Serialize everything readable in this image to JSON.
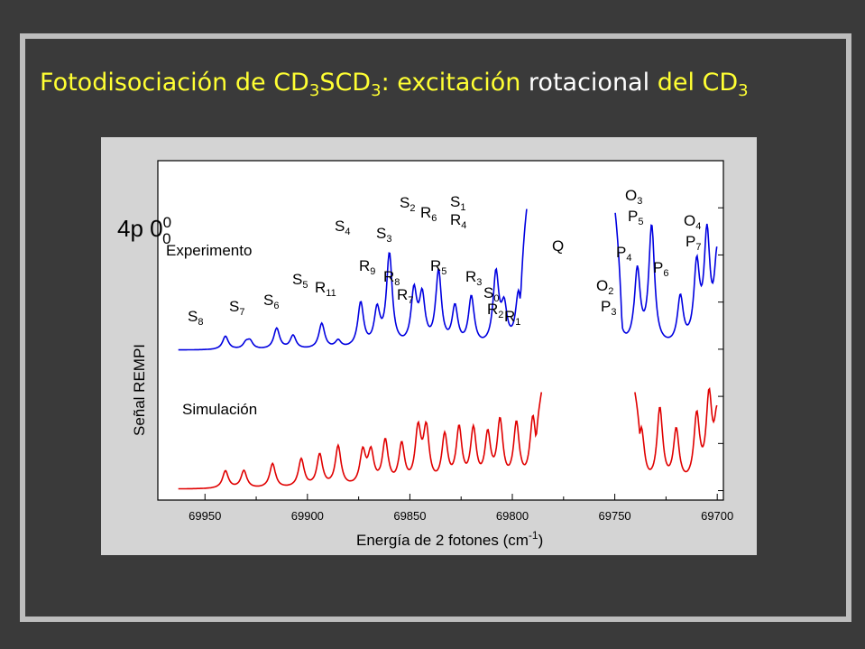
{
  "title": {
    "part1": "Fotodisociación de CD",
    "sub1": "3",
    "part2": "SCD",
    "sub2": "3",
    "part3": ": excitación ",
    "part4": "rotacional",
    "part5": " del CD",
    "sub3": "3"
  },
  "colors": {
    "experiment": "#0000e0",
    "simulation": "#e00000",
    "title_accent": "#ffff33"
  },
  "chart_data": {
    "type": "line",
    "xlabel": "Energía de 2 fotones (cm",
    "xlabel_sup": "-1",
    "xlabel_end": ")",
    "ylabel": "Señal REMPI",
    "xlim": [
      69973,
      69697
    ],
    "x_reversed": true,
    "x_ticks": [
      69950,
      69900,
      69850,
      69800,
      69750,
      69700
    ],
    "grid": false,
    "band_label": {
      "main": "4p 0",
      "sup": "0",
      "sub": "0"
    },
    "series": [
      {
        "name": "Experimento",
        "baseline": 0.0,
        "peaks": [
          {
            "x": 69940,
            "h": 0.09
          },
          {
            "x": 69930,
            "h": 0.04
          },
          {
            "x": 69928,
            "h": 0.05
          },
          {
            "x": 69915,
            "h": 0.14
          },
          {
            "x": 69907,
            "h": 0.09
          },
          {
            "x": 69893,
            "h": 0.17
          },
          {
            "x": 69885,
            "h": 0.05
          },
          {
            "x": 69874,
            "h": 0.3
          },
          {
            "x": 69866,
            "h": 0.24
          },
          {
            "x": 69860,
            "h": 0.62
          },
          {
            "x": 69848,
            "h": 0.36
          },
          {
            "x": 69844,
            "h": 0.32
          },
          {
            "x": 69836,
            "h": 0.5
          },
          {
            "x": 69828,
            "h": 0.26
          },
          {
            "x": 69820,
            "h": 0.33
          },
          {
            "x": 69808,
            "h": 0.48
          },
          {
            "x": 69804,
            "h": 0.24
          },
          {
            "x": 69797,
            "h": 0.33
          },
          {
            "x": 69790,
            "h": 0.5
          },
          {
            "x": 69786,
            "h": 0.25
          },
          {
            "x": 69779,
            "h": 0.5
          },
          {
            "x": 69770,
            "h": 0.35
          },
          {
            "x": 69760,
            "h": 0.55
          },
          {
            "x": 69752,
            "h": 0.2
          },
          {
            "x": 69748,
            "h": 0.16
          },
          {
            "x": 69739,
            "h": 0.5
          },
          {
            "x": 69732,
            "h": 0.8
          },
          {
            "x": 69718,
            "h": 0.32
          },
          {
            "x": 69710,
            "h": 0.52
          },
          {
            "x": 69705,
            "h": 0.72
          },
          {
            "x": 69700,
            "h": 0.6
          }
        ],
        "q_branch": [
          69797,
          69746
        ]
      },
      {
        "name": "Simulación",
        "peaks": [
          {
            "x": 69940,
            "h": 0.13
          },
          {
            "x": 69931,
            "h": 0.13
          },
          {
            "x": 69917,
            "h": 0.18
          },
          {
            "x": 69903,
            "h": 0.21
          },
          {
            "x": 69894,
            "h": 0.24
          },
          {
            "x": 69885,
            "h": 0.3
          },
          {
            "x": 69873,
            "h": 0.25
          },
          {
            "x": 69869,
            "h": 0.24
          },
          {
            "x": 69862,
            "h": 0.33
          },
          {
            "x": 69854,
            "h": 0.3
          },
          {
            "x": 69846,
            "h": 0.4
          },
          {
            "x": 69842,
            "h": 0.4
          },
          {
            "x": 69833,
            "h": 0.36
          },
          {
            "x": 69826,
            "h": 0.41
          },
          {
            "x": 69819,
            "h": 0.4
          },
          {
            "x": 69812,
            "h": 0.36
          },
          {
            "x": 69806,
            "h": 0.46
          },
          {
            "x": 69798,
            "h": 0.44
          },
          {
            "x": 69790,
            "h": 0.45
          },
          {
            "x": 69785,
            "h": 0.45
          },
          {
            "x": 69779,
            "h": 0.5
          },
          {
            "x": 69770,
            "h": 0.4
          },
          {
            "x": 69760,
            "h": 0.4
          },
          {
            "x": 69752,
            "h": 0.44
          },
          {
            "x": 69748,
            "h": 0.36
          },
          {
            "x": 69737,
            "h": 0.41
          },
          {
            "x": 69728,
            "h": 0.56
          },
          {
            "x": 69720,
            "h": 0.4
          },
          {
            "x": 69710,
            "h": 0.5
          },
          {
            "x": 69704,
            "h": 0.62
          },
          {
            "x": 69700,
            "h": 0.5
          }
        ],
        "q_branch": [
          69790,
          69736
        ]
      }
    ],
    "annotations": [
      {
        "t": "S",
        "s": "8"
      },
      {
        "t": "S",
        "s": "7"
      },
      {
        "t": "S",
        "s": "6"
      },
      {
        "t": "S",
        "s": "5"
      },
      {
        "t": "R",
        "s": "11"
      },
      {
        "t": "S",
        "s": "4"
      },
      {
        "t": "R",
        "s": "9"
      },
      {
        "t": "R",
        "s": "8"
      },
      {
        "t": "S",
        "s": "3"
      },
      {
        "t": "R",
        "s": "7"
      },
      {
        "t": "S",
        "s": "2"
      },
      {
        "t": "R",
        "s": "6"
      },
      {
        "t": "R",
        "s": "5"
      },
      {
        "t": "S",
        "s": "1"
      },
      {
        "t": "R",
        "s": "4"
      },
      {
        "t": "R",
        "s": "3"
      },
      {
        "t": "S",
        "s": "0"
      },
      {
        "t": "R",
        "s": "2"
      },
      {
        "t": "R",
        "s": "1"
      },
      {
        "t": "Q",
        "s": ""
      },
      {
        "t": "O",
        "s": "2"
      },
      {
        "t": "P",
        "s": "3"
      },
      {
        "t": "P",
        "s": "4"
      },
      {
        "t": "O",
        "s": "3"
      },
      {
        "t": "P",
        "s": "5"
      },
      {
        "t": "P",
        "s": "6"
      },
      {
        "t": "O",
        "s": "4"
      },
      {
        "t": "P",
        "s": "7"
      }
    ]
  }
}
